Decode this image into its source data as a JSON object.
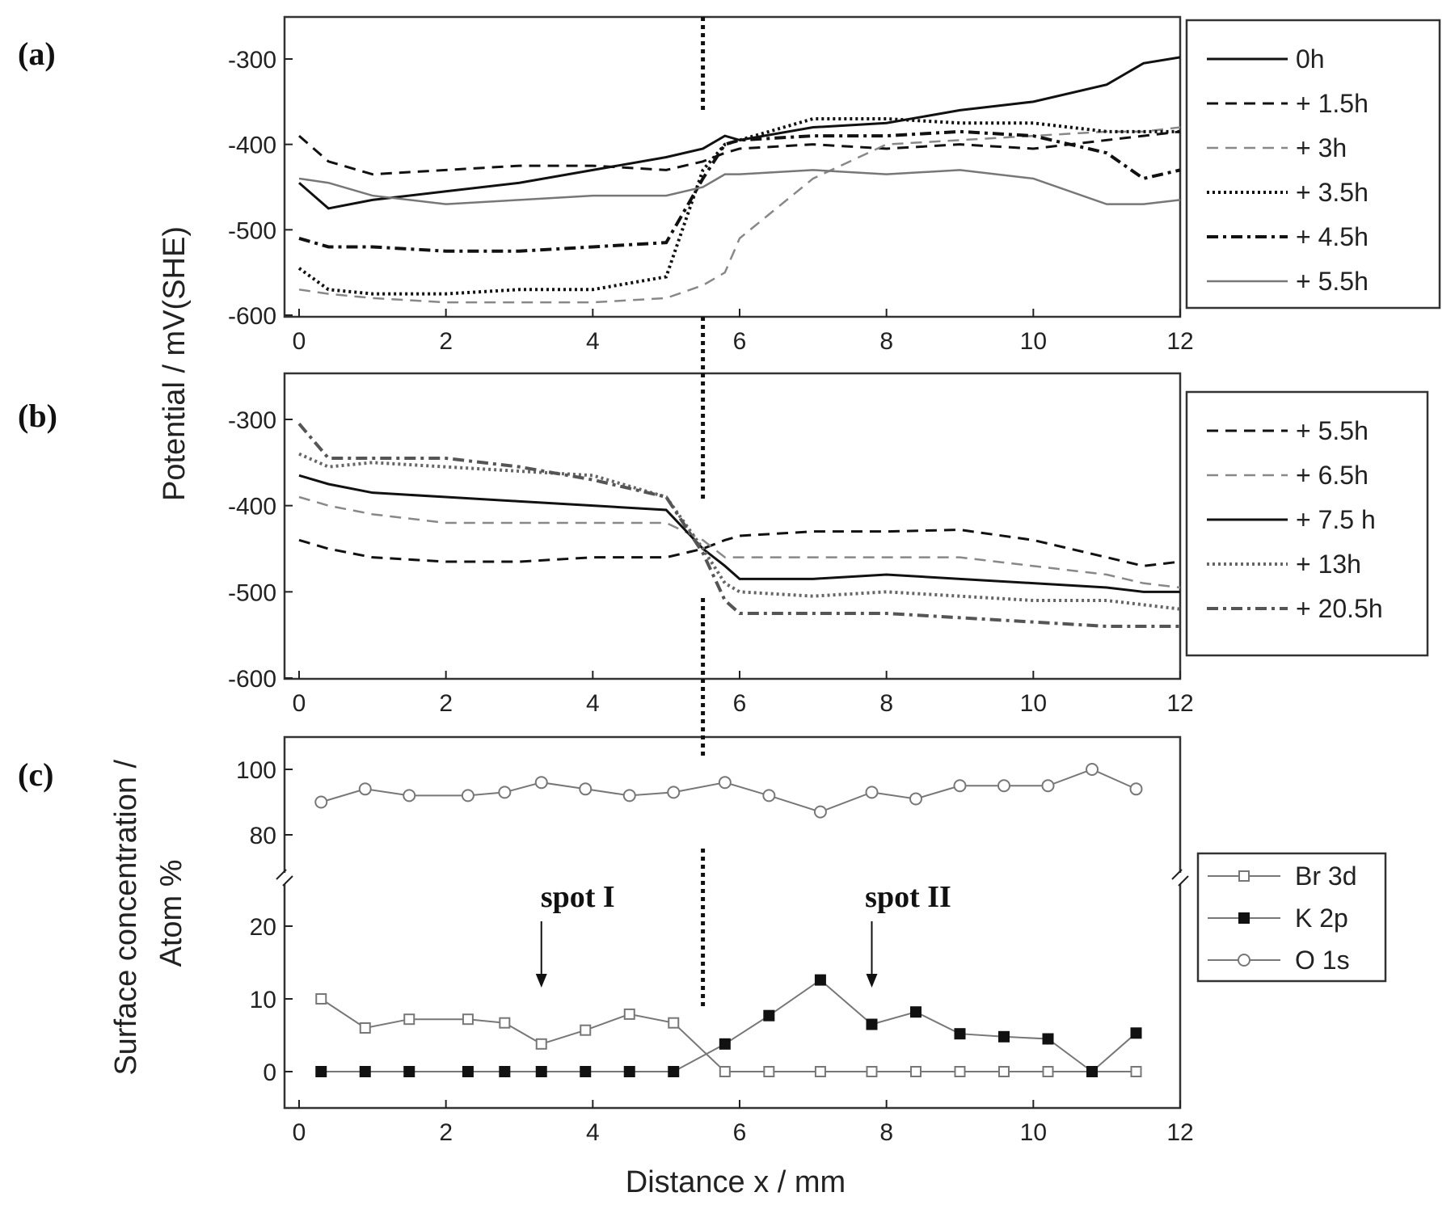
{
  "chart_data": [
    {
      "type": "line",
      "panel_label": "(a)",
      "xlim": [
        0,
        12
      ],
      "ylim": [
        -600,
        -250
      ],
      "x_ticks": [
        "0",
        "2",
        "4",
        "6",
        "8",
        "10",
        "12"
      ],
      "y_ticks": [
        "-300",
        "-400",
        "-500",
        "-600"
      ],
      "x": [
        0,
        0.4,
        1,
        2,
        3,
        4,
        5,
        5.5,
        5.8,
        6,
        7,
        8,
        9,
        10,
        11,
        11.5,
        12
      ],
      "series": [
        {
          "name": "0h",
          "style": "solid-dark",
          "values": [
            -445,
            -475,
            -465,
            -455,
            -445,
            -430,
            -415,
            -405,
            -390,
            -395,
            -380,
            -375,
            -360,
            -350,
            -330,
            -305,
            -298
          ]
        },
        {
          "name": "+ 1.5h",
          "style": "dash-dark",
          "values": [
            -390,
            -420,
            -435,
            -430,
            -425,
            -425,
            -430,
            -420,
            -410,
            -405,
            -400,
            -405,
            -400,
            -405,
            -395,
            -390,
            -385
          ]
        },
        {
          "name": "+ 3h",
          "style": "dash-gray",
          "values": [
            -570,
            -575,
            -580,
            -585,
            -585,
            -585,
            -580,
            -565,
            -550,
            -510,
            -440,
            -400,
            -395,
            -390,
            -385,
            -385,
            -380
          ]
        },
        {
          "name": "+ 3.5h",
          "style": "dot-dark",
          "values": [
            -545,
            -570,
            -575,
            -575,
            -570,
            -570,
            -555,
            -430,
            -400,
            -395,
            -370,
            -370,
            -375,
            -375,
            -385,
            -385,
            -385
          ]
        },
        {
          "name": "+ 4.5h",
          "style": "dashdot-dark",
          "values": [
            -510,
            -520,
            -520,
            -525,
            -525,
            -520,
            -515,
            -440,
            -400,
            -395,
            -390,
            -390,
            -385,
            -390,
            -410,
            -440,
            -430
          ]
        },
        {
          "name": "+ 5.5h",
          "style": "solid-gray",
          "values": [
            -440,
            -445,
            -460,
            -470,
            -465,
            -460,
            -460,
            -450,
            -435,
            -435,
            -430,
            -435,
            -430,
            -440,
            -470,
            -470,
            -465
          ]
        }
      ]
    },
    {
      "type": "line",
      "panel_label": "(b)",
      "xlim": [
        0,
        12
      ],
      "ylim": [
        -600,
        -250
      ],
      "x_ticks": [
        "0",
        "2",
        "4",
        "6",
        "8",
        "10",
        "12"
      ],
      "y_ticks": [
        "-300",
        "-400",
        "-500",
        "-600"
      ],
      "x": [
        0,
        0.4,
        1,
        2,
        3,
        4,
        5,
        5.5,
        5.8,
        6,
        7,
        8,
        9,
        10,
        11,
        11.5,
        12
      ],
      "series": [
        {
          "name": "+ 5.5h",
          "style": "dash-dark",
          "values": [
            -440,
            -450,
            -460,
            -465,
            -465,
            -460,
            -460,
            -450,
            -440,
            -435,
            -430,
            -430,
            -428,
            -440,
            -460,
            -470,
            -465
          ]
        },
        {
          "name": "+ 6.5h",
          "style": "dash-gray",
          "values": [
            -390,
            -400,
            -410,
            -420,
            -420,
            -420,
            -420,
            -440,
            -460,
            -460,
            -460,
            -460,
            -460,
            -470,
            -480,
            -490,
            -495
          ]
        },
        {
          "name": "+ 7.5 h",
          "style": "solid-dark",
          "values": [
            -365,
            -375,
            -385,
            -390,
            -395,
            -400,
            -405,
            -450,
            -470,
            -485,
            -485,
            -480,
            -485,
            -490,
            -495,
            -500,
            -500
          ]
        },
        {
          "name": "+ 13h",
          "style": "dot-gray",
          "values": [
            -340,
            -355,
            -350,
            -355,
            -360,
            -365,
            -390,
            -450,
            -490,
            -500,
            -505,
            -500,
            -505,
            -510,
            -510,
            -515,
            -520
          ]
        },
        {
          "name": "+ 20.5h",
          "style": "dashdot-gray",
          "values": [
            -305,
            -345,
            -345,
            -345,
            -355,
            -370,
            -390,
            -455,
            -510,
            -525,
            -525,
            -525,
            -530,
            -535,
            -540,
            -540,
            -540
          ]
        }
      ]
    },
    {
      "type": "scatter",
      "panel_label": "(c)",
      "xlim": [
        0,
        12
      ],
      "ylim_lower": [
        -5,
        25
      ],
      "ylim_upper": [
        75,
        110
      ],
      "x_ticks": [
        "0",
        "2",
        "4",
        "6",
        "8",
        "10",
        "12"
      ],
      "y_ticks": [
        "0",
        "10",
        "20",
        "80",
        "100"
      ],
      "xlabel": "Distance x / mm",
      "ylabel": "Surface concentration / Atom %",
      "x": [
        0.3,
        0.9,
        1.5,
        2.3,
        2.8,
        3.3,
        3.9,
        4.5,
        5.1,
        5.8,
        6.4,
        7.1,
        7.8,
        8.4,
        9.0,
        9.6,
        10.2,
        10.8,
        11.4
      ],
      "series": [
        {
          "name": "Br 3d",
          "marker": "open-square",
          "values": [
            10,
            6,
            7.2,
            7.2,
            6.7,
            3.8,
            5.7,
            7.9,
            6.7,
            0,
            0,
            0,
            0,
            0,
            0,
            0,
            0,
            0,
            0
          ]
        },
        {
          "name": "K 2p",
          "marker": "filled-square",
          "values": [
            0,
            0,
            0,
            0,
            0,
            0,
            0,
            0,
            0,
            3.8,
            7.7,
            12.6,
            6.5,
            8.2,
            5.2,
            4.8,
            4.5,
            0,
            5.3
          ]
        },
        {
          "name": "O 1s",
          "marker": "open-circle",
          "values": [
            90,
            94,
            92,
            92,
            93,
            96,
            94,
            92,
            93,
            96,
            92,
            87,
            93,
            91,
            95,
            95,
            95,
            100,
            94
          ]
        }
      ],
      "annotations": [
        {
          "text": "spot I",
          "x": 3.3
        },
        {
          "text": "spot II",
          "x": 7.8
        }
      ]
    }
  ],
  "shared_ylabel": "Potential / mV(SHE)",
  "divider_x": 5.5
}
